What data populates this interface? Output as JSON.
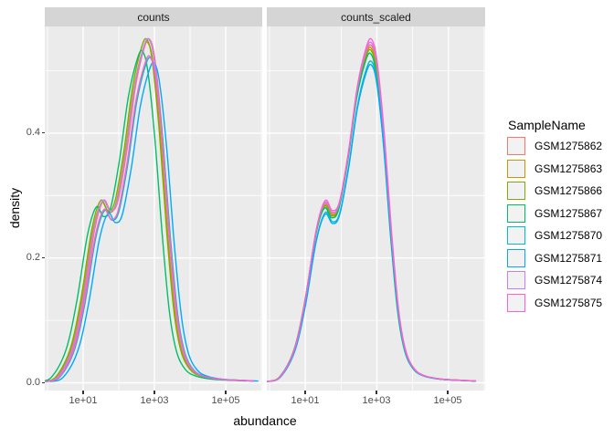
{
  "figure": {
    "background": "#FFFFFF",
    "panel_bg": "#EBEBEB",
    "strip_bg": "#D5D5D5",
    "grid_color": "#FFFFFF",
    "axis_text_color": "#4D4D4D",
    "strip_text_color": "#1A1A1A",
    "tick_color": "#333333",
    "legend_key_bg": "#F2F2F2"
  },
  "legend": {
    "title": "SampleName"
  },
  "chart_data": {
    "type": "line",
    "kind": "faceted-density-plot",
    "title": "",
    "xlabel": "abundance",
    "ylabel": "density",
    "facets": [
      {
        "label": "counts"
      },
      {
        "label": "counts_scaled"
      }
    ],
    "x_axis": {
      "scale": "log10",
      "major_ticks": [
        {
          "label": "1e+01",
          "log10": 1
        },
        {
          "label": "1e+03",
          "log10": 3
        },
        {
          "label": "1e+05",
          "log10": 5
        }
      ],
      "minor_log10": [
        0,
        2,
        4,
        6
      ],
      "range_log10": [
        -0.08,
        6.03
      ]
    },
    "y_axis": {
      "major_ticks": [
        {
          "label": "0.0",
          "value": 0.0
        },
        {
          "label": "0.2",
          "value": 0.2
        },
        {
          "label": "0.4",
          "value": 0.4
        }
      ],
      "minor_values": [
        0.1,
        0.3,
        0.5
      ],
      "range": [
        -0.012,
        0.571
      ]
    },
    "base_curve": {
      "log10_x": [
        -0.06,
        0.3,
        0.7,
        1.0,
        1.3,
        1.55,
        1.75,
        1.95,
        2.2,
        2.45,
        2.7,
        2.85,
        3.0,
        3.2,
        3.4,
        3.6,
        3.8,
        4.05,
        4.35,
        4.8,
        5.3,
        5.75
      ],
      "density": [
        0.002,
        0.01,
        0.055,
        0.135,
        0.245,
        0.292,
        0.276,
        0.29,
        0.37,
        0.475,
        0.538,
        0.55,
        0.515,
        0.4,
        0.245,
        0.118,
        0.052,
        0.022,
        0.011,
        0.006,
        0.0042,
        0.003
      ]
    },
    "samples": [
      {
        "name": "GSM1275862",
        "color": "#F8766D",
        "counts": {
          "dx": 0.02,
          "peak_scale": 1.0
        },
        "counts_scaled": {
          "dx": 0.0,
          "peak_scale": 0.982
        }
      },
      {
        "name": "GSM1275863",
        "color": "#CD9600",
        "counts": {
          "dx": -0.03,
          "peak_scale": 0.99
        },
        "counts_scaled": {
          "dx": -0.008,
          "peak_scale": 0.975
        }
      },
      {
        "name": "GSM1275866",
        "color": "#7CAE00",
        "counts": {
          "dx": -0.06,
          "peak_scale": 1.0
        },
        "counts_scaled": {
          "dx": -0.012,
          "peak_scale": 0.968
        }
      },
      {
        "name": "GSM1275867",
        "color": "#00BE67",
        "counts": {
          "dx": -0.18,
          "peak_scale": 0.965
        },
        "counts_scaled": {
          "dx": -0.018,
          "peak_scale": 0.958
        }
      },
      {
        "name": "GSM1275870",
        "color": "#00BFC4",
        "counts": {
          "dx": 0.05,
          "peak_scale": 0.945
        },
        "counts_scaled": {
          "dx": 0.008,
          "peak_scale": 0.935
        }
      },
      {
        "name": "GSM1275871",
        "color": "#00A9FF",
        "counts": {
          "dx": 0.15,
          "peak_scale": 0.93
        },
        "counts_scaled": {
          "dx": 0.004,
          "peak_scale": 0.925
        }
      },
      {
        "name": "GSM1275874",
        "color": "#C77CFF",
        "counts": {
          "dx": 0.0,
          "peak_scale": 1.0
        },
        "counts_scaled": {
          "dx": 0.0,
          "peak_scale": 0.99
        }
      },
      {
        "name": "GSM1275875",
        "color": "#FF61CC",
        "counts": {
          "dx": 0.03,
          "peak_scale": 0.95
        },
        "counts_scaled": {
          "dx": 0.004,
          "peak_scale": 1.0
        }
      }
    ]
  }
}
